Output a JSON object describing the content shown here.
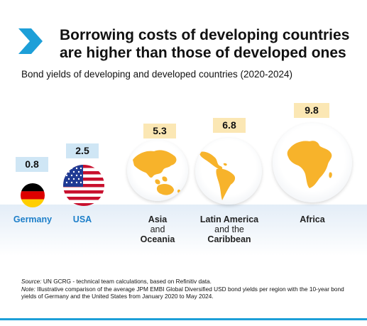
{
  "title": "Borrowing costs of developing countries are higher than those of developed ones",
  "subtitle": "Bond yields of developing and developed countries (2020-2024)",
  "chart_data": {
    "type": "bubble",
    "categories": [
      "Germany",
      "USA",
      "Asia and Oceania",
      "Latin America and the Caribbean",
      "Africa"
    ],
    "values": [
      0.8,
      2.5,
      5.3,
      6.8,
      9.8
    ],
    "labels": {
      "germany": "Germany",
      "usa": "USA",
      "asia_1": "Asia",
      "asia_2": "and",
      "asia_3": "Oceania",
      "latam_1": "Latin America",
      "latam_2": "and the",
      "latam_3": "Caribbean",
      "africa": "Africa"
    }
  },
  "source": {
    "source_label": "Source:",
    "source_text": " UN GCRG - technical team calculations, based on Refinitiv data.",
    "note_label": "Note:",
    "note_text": " Illustrative comparison of the average JPM EMBI Global Diversified USD bond yields per region with the 10-year bond yields of Germany and the United States from January 2020 to May 2024."
  },
  "colors": {
    "accent_blue": "#1d9fd8",
    "land": "#f7b32b",
    "developed_badge": "#cfe6f5",
    "developing_badge": "#fbe7b4"
  }
}
